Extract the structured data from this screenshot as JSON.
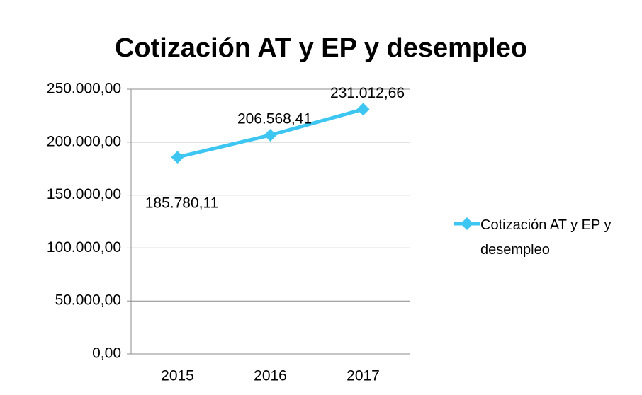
{
  "chart_data": {
    "type": "line",
    "title": "Cotización AT y EP y desempleo",
    "categories": [
      "2015",
      "2016",
      "2017"
    ],
    "series": [
      {
        "name": "Cotización AT y EP y desempleo",
        "color": "#3ec6f2",
        "values": [
          185780.11,
          206568.41,
          231012.66
        ],
        "value_labels": [
          "185.780,11",
          "206.568,41",
          "231.012,66"
        ]
      }
    ],
    "ylim": [
      0,
      250000
    ],
    "yticks": [
      {
        "value": 0,
        "label": "0,00"
      },
      {
        "value": 50000,
        "label": "50.000,00"
      },
      {
        "value": 100000,
        "label": "100.000,00"
      },
      {
        "value": 150000,
        "label": "150.000,00"
      },
      {
        "value": 200000,
        "label": "200.000,00"
      },
      {
        "value": 250000,
        "label": "250.000,00"
      }
    ],
    "grid": true,
    "legend": "right"
  }
}
